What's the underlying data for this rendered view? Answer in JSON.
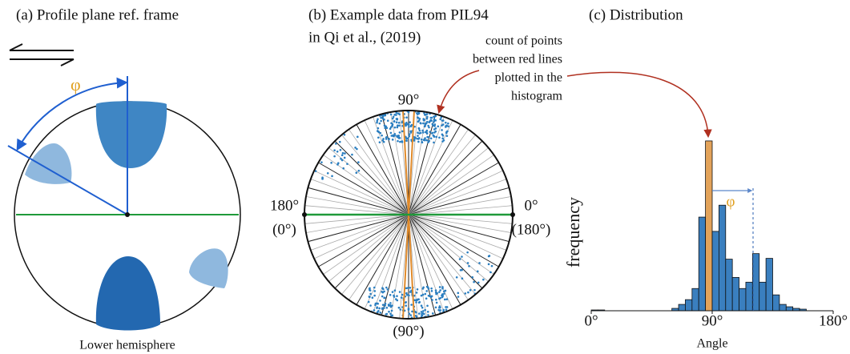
{
  "panel_a": {
    "title": "(a) Profile plane ref. frame",
    "angle_symbol": "φ",
    "caption": "Lower hemisphere"
  },
  "panel_b": {
    "title_line1": "(b) Example data from PIL94",
    "title_line2": "in Qi et al., (2019)",
    "label_top": "90°",
    "label_left": "180°",
    "label_left_sub": "(0°)",
    "label_right": "0°",
    "label_right_sub": "(180°)",
    "label_bottom": "(90°)",
    "annotation": [
      "count of points",
      "between red lines",
      "plotted in the",
      "histogram"
    ]
  },
  "chart_data": {
    "type": "histogram",
    "title": "(c) Distribution",
    "x_label": "Angle",
    "y_label": "frequency",
    "bins": [
      0,
      5,
      10,
      15,
      20,
      25,
      30,
      35,
      40,
      45,
      50,
      55,
      60,
      65,
      70,
      75,
      80,
      85,
      90,
      95,
      100,
      105,
      110,
      115,
      120,
      125,
      130,
      135,
      140,
      145,
      150,
      155,
      160,
      165,
      170,
      175,
      180
    ],
    "counts": [
      1,
      1,
      0,
      0,
      0,
      0,
      0,
      0,
      0,
      0,
      0,
      0,
      3,
      8,
      14,
      28,
      118,
      214,
      100,
      133,
      65,
      42,
      28,
      36,
      72,
      36,
      66,
      20,
      8,
      5,
      3,
      2,
      0,
      0,
      0,
      0
    ],
    "color": "#3a7fbf",
    "highlight_color": "#e3a35a",
    "highlight_bin": 17,
    "xlim": [
      0,
      180
    ],
    "ylim": [
      0,
      220
    ],
    "xticks": [
      {
        "value": 0,
        "label": "0°"
      },
      {
        "value": 90,
        "label": "90°"
      },
      {
        "value": 180,
        "label": "180°"
      }
    ],
    "angle_symbol": "φ"
  }
}
